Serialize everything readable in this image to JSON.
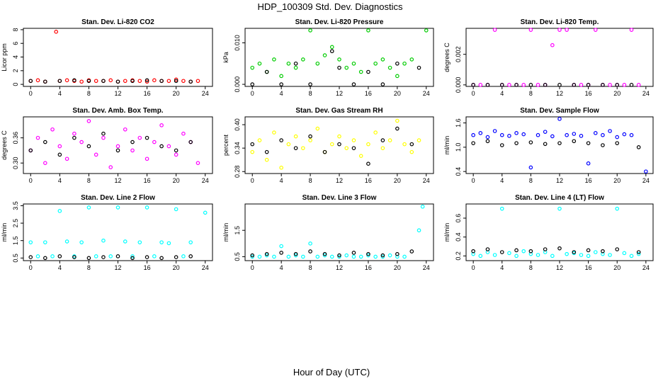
{
  "title": "HDP_100309  Std. Dev. Diagnostics",
  "x_label": "Hour of Day (UTC)",
  "chart_data": [
    {
      "type": "scatter",
      "title": "Stan. Dev. Li-820 CO2",
      "y_label": "Licor ppm",
      "xlim": [
        -1,
        25
      ],
      "xticks": [
        0,
        4,
        8,
        12,
        16,
        20,
        24
      ],
      "ylim": [
        -0.3,
        8.2
      ],
      "yticks": [
        0,
        2,
        4,
        6,
        8
      ],
      "series": [
        {
          "color": "#ff0000",
          "x": [
            0,
            1,
            2,
            3.5,
            4,
            5,
            6,
            7,
            8,
            9,
            10,
            11,
            12,
            13,
            14,
            15,
            16,
            17,
            18,
            19,
            20,
            21,
            22,
            23
          ],
          "values": [
            0.5,
            0.6,
            0.4,
            7.7,
            0.5,
            0.6,
            0.5,
            0.4,
            0.6,
            0.5,
            0.5,
            0.6,
            0.4,
            0.5,
            0.6,
            0.5,
            0.4,
            0.6,
            0.5,
            0.5,
            0.7,
            0.5,
            0.4,
            0.5
          ]
        },
        {
          "color": "#000000",
          "x": [
            0,
            2,
            4,
            6,
            8,
            10,
            12,
            14,
            16,
            18,
            20,
            22
          ],
          "values": [
            0.5,
            0.4,
            0.5,
            0.6,
            0.5,
            0.5,
            0.4,
            0.5,
            0.6,
            0.5,
            0.5,
            0.4
          ]
        }
      ]
    },
    {
      "type": "scatter",
      "title": "Stan. Dev. Li-820 Pressure",
      "y_label": "kPa",
      "xlim": [
        -1,
        25
      ],
      "xticks": [
        0,
        4,
        8,
        12,
        16,
        20,
        24
      ],
      "ylim": [
        -0.0005,
        0.0135
      ],
      "yticks": [
        {
          "value": 0,
          "label": "0.000"
        },
        {
          "value": 0.01,
          "label": "0.010"
        }
      ],
      "series": [
        {
          "color": "#00cc00",
          "x": [
            0,
            1,
            2,
            3,
            4,
            5,
            6,
            7,
            8,
            9,
            10,
            11,
            12,
            13,
            14,
            15,
            16,
            17,
            18,
            19,
            20,
            21,
            22,
            24
          ],
          "values": [
            0.004,
            0.005,
            0.003,
            0.006,
            0.002,
            0.005,
            0.004,
            0.006,
            0.013,
            0.005,
            0.007,
            0.009,
            0.006,
            0.004,
            0.005,
            0.003,
            0.013,
            0.005,
            0.006,
            0.004,
            0.002,
            0.005,
            0.006,
            0.013
          ]
        },
        {
          "color": "#000000",
          "x": [
            0,
            2,
            4,
            6,
            8,
            11,
            12,
            14,
            16,
            18,
            20,
            23
          ],
          "values": [
            0,
            0.003,
            0,
            0.005,
            0,
            0.008,
            0.004,
            0,
            0.003,
            0,
            0.005,
            0.004
          ]
        }
      ]
    },
    {
      "type": "scatter",
      "title": "Stan. Dev. Li-820 Temp.",
      "y_label": "degrees C",
      "xlim": [
        -1,
        25
      ],
      "xticks": [
        0,
        4,
        8,
        12,
        16,
        20,
        24
      ],
      "ylim": [
        -0.0001,
        0.0037
      ],
      "yticks": [
        {
          "value": 0,
          "label": "0.000"
        },
        {
          "value": 0.002,
          "label": "0.002"
        }
      ],
      "series": [
        {
          "color": "#ff00ff",
          "x": [
            0,
            1,
            2,
            3,
            4,
            5,
            6,
            7,
            8,
            9,
            10,
            11,
            12,
            13,
            14,
            15,
            16,
            17,
            18,
            19,
            20,
            21,
            22,
            23
          ],
          "values": [
            0,
            0,
            0,
            0.0036,
            0,
            0,
            0,
            0,
            0.0036,
            0,
            0,
            0.0026,
            0.0036,
            0.0036,
            0,
            0,
            0,
            0.0036,
            0,
            0,
            0,
            0,
            0.0036,
            0
          ]
        },
        {
          "color": "#000000",
          "x": [
            0,
            2,
            4,
            6,
            8,
            10,
            12,
            14,
            16,
            18,
            20,
            22
          ],
          "values": [
            0,
            0,
            0,
            0,
            0,
            0,
            0,
            0,
            0,
            0,
            0,
            0
          ]
        }
      ]
    },
    {
      "type": "scatter",
      "title": "Stan. Dev. Amb. Box Temp.",
      "y_label": "degrees C",
      "xlim": [
        -1,
        25
      ],
      "xticks": [
        0,
        4,
        8,
        12,
        16,
        20,
        24
      ],
      "ylim": [
        0.275,
        0.41
      ],
      "yticks": [
        {
          "value": 0.3,
          "label": "0.30"
        },
        {
          "value": 0.36,
          "label": "0.36"
        }
      ],
      "series": [
        {
          "color": "#ff00ff",
          "x": [
            0,
            1,
            2,
            3,
            4,
            5,
            6,
            7,
            8,
            9,
            10,
            11,
            12,
            13,
            14,
            15,
            16,
            17,
            18,
            19,
            20,
            21,
            22,
            23
          ],
          "values": [
            0.33,
            0.36,
            0.3,
            0.38,
            0.34,
            0.31,
            0.37,
            0.35,
            0.4,
            0.32,
            0.36,
            0.29,
            0.34,
            0.38,
            0.33,
            0.36,
            0.31,
            0.35,
            0.39,
            0.34,
            0.32,
            0.37,
            0.35,
            0.3
          ]
        },
        {
          "color": "#000000",
          "x": [
            0,
            2,
            4,
            6,
            8,
            10,
            12,
            14,
            16,
            18,
            20,
            22
          ],
          "values": [
            0.33,
            0.35,
            0.32,
            0.36,
            0.34,
            0.37,
            0.33,
            0.35,
            0.36,
            0.34,
            0.33,
            0.35
          ]
        }
      ]
    },
    {
      "type": "scatter",
      "title": "Stan. Dev. Gas Stream RH",
      "y_label": "percent",
      "xlim": [
        -1,
        25
      ],
      "xticks": [
        0,
        4,
        8,
        12,
        16,
        20,
        24
      ],
      "ylim": [
        0.275,
        0.42
      ],
      "yticks": [
        0.28,
        0.34,
        {
          "value": 0.4,
          "label": "0.40"
        }
      ],
      "series": [
        {
          "color": "#ffff00",
          "x": [
            0,
            1,
            2,
            3,
            4,
            5,
            6,
            7,
            8,
            9,
            10,
            11,
            12,
            13,
            14,
            15,
            16,
            17,
            18,
            19,
            20,
            21,
            22,
            23
          ],
          "values": [
            0.33,
            0.36,
            0.31,
            0.38,
            0.29,
            0.35,
            0.37,
            0.34,
            0.36,
            0.39,
            0.33,
            0.35,
            0.37,
            0.34,
            0.36,
            0.32,
            0.35,
            0.38,
            0.34,
            0.36,
            0.41,
            0.35,
            0.33,
            0.36
          ]
        },
        {
          "color": "#000000",
          "x": [
            0,
            2,
            4,
            6,
            8,
            10,
            12,
            14,
            16,
            18,
            20,
            22
          ],
          "values": [
            0.35,
            0.33,
            0.36,
            0.34,
            0.37,
            0.33,
            0.35,
            0.34,
            0.3,
            0.36,
            0.39,
            0.35
          ]
        }
      ]
    },
    {
      "type": "scatter",
      "title": "Stan. Dev. Sample Flow",
      "y_label": "ml/min",
      "xlim": [
        -1,
        25
      ],
      "xticks": [
        0,
        4,
        8,
        12,
        16,
        20,
        24
      ],
      "ylim": [
        0.35,
        1.75
      ],
      "yticks": [
        0.4,
        {
          "value": 1,
          "label": "1.0"
        },
        1.6
      ],
      "series": [
        {
          "color": "#0000ff",
          "x": [
            0,
            1,
            2,
            3,
            4,
            5,
            6,
            7,
            8,
            9,
            10,
            11,
            12,
            13,
            14,
            15,
            16,
            17,
            18,
            19,
            20,
            21,
            22,
            24
          ],
          "values": [
            1.3,
            1.35,
            1.25,
            1.4,
            1.3,
            1.28,
            1.35,
            1.32,
            0.5,
            1.3,
            1.38,
            1.27,
            1.7,
            1.3,
            1.33,
            1.28,
            0.6,
            1.35,
            1.3,
            1.4,
            1.25,
            1.32,
            1.3,
            0.4
          ]
        },
        {
          "color": "#000000",
          "x": [
            0,
            2,
            4,
            6,
            8,
            10,
            12,
            14,
            16,
            18,
            20,
            23
          ],
          "values": [
            1.1,
            1.15,
            1.05,
            1.1,
            1.12,
            1.08,
            1.1,
            1.15,
            1.1,
            1.05,
            1.1,
            1.0
          ]
        }
      ]
    },
    {
      "type": "scatter",
      "title": "Stan. Dev. Line 2 Flow",
      "y_label": "ml/min",
      "xlim": [
        -1,
        25
      ],
      "xticks": [
        0,
        4,
        8,
        12,
        16,
        20,
        24
      ],
      "ylim": [
        0.35,
        3.6
      ],
      "yticks": [
        0.5,
        1.5,
        2.5,
        3.5
      ],
      "series": [
        {
          "color": "#00ffff",
          "x": [
            0,
            1,
            2,
            3,
            4,
            5,
            6,
            7,
            8,
            9,
            10,
            11,
            12,
            13,
            14,
            15,
            16,
            17,
            18,
            19,
            20,
            21,
            22,
            24
          ],
          "values": [
            1.4,
            0.6,
            1.4,
            0.6,
            3.2,
            1.45,
            0.6,
            1.4,
            3.4,
            0.6,
            1.5,
            0.6,
            3.4,
            1.45,
            0.6,
            1.4,
            3.4,
            0.6,
            1.4,
            1.35,
            3.3,
            0.6,
            1.4,
            3.1
          ]
        },
        {
          "color": "#000000",
          "x": [
            0,
            2,
            4,
            6,
            8,
            10,
            12,
            14,
            16,
            18,
            20,
            22
          ],
          "values": [
            0.55,
            0.5,
            0.6,
            0.55,
            0.5,
            0.55,
            0.6,
            0.5,
            0.55,
            0.5,
            0.55,
            0.6
          ]
        }
      ]
    },
    {
      "type": "scatter",
      "title": "Stan. Dev. Line 3 Flow",
      "y_label": "ml/min",
      "xlim": [
        -1,
        25
      ],
      "xticks": [
        0,
        4,
        8,
        12,
        16,
        20,
        24
      ],
      "ylim": [
        0.35,
        2.5
      ],
      "yticks": [
        0.5,
        1.5
      ],
      "series": [
        {
          "color": "#00ffff",
          "x": [
            0,
            1,
            2,
            3,
            4,
            5,
            6,
            7,
            8,
            9,
            10,
            11,
            12,
            13,
            14,
            15,
            16,
            17,
            18,
            19,
            20,
            21,
            23,
            23.5
          ],
          "values": [
            0.5,
            0.5,
            0.55,
            0.5,
            0.9,
            0.5,
            0.55,
            0.5,
            1.0,
            0.5,
            0.55,
            0.5,
            0.5,
            0.55,
            0.5,
            0.5,
            0.55,
            0.5,
            0.5,
            0.55,
            0.5,
            0.5,
            1.5,
            2.4
          ]
        },
        {
          "color": "#000000",
          "x": [
            0,
            2,
            4,
            6,
            8,
            10,
            12,
            14,
            16,
            18,
            20,
            22
          ],
          "values": [
            0.55,
            0.6,
            0.65,
            0.6,
            0.7,
            0.6,
            0.55,
            0.65,
            0.6,
            0.55,
            0.6,
            0.7
          ]
        }
      ]
    },
    {
      "type": "scatter",
      "title": "Stan. Dev. Line 4 (LT) Flow",
      "y_label": "ml/min",
      "xlim": [
        -1,
        25
      ],
      "xticks": [
        0,
        4,
        8,
        12,
        16,
        20,
        24
      ],
      "ylim": [
        0.15,
        0.75
      ],
      "yticks": [
        0.2,
        0.4,
        0.6
      ],
      "series": [
        {
          "color": "#00ffff",
          "x": [
            0,
            1,
            2,
            3,
            4,
            5,
            6,
            7,
            8,
            9,
            10,
            11,
            12,
            13,
            14,
            15,
            16,
            17,
            18,
            19,
            20,
            21,
            22,
            23
          ],
          "values": [
            0.22,
            0.2,
            0.24,
            0.21,
            0.7,
            0.23,
            0.2,
            0.25,
            0.22,
            0.21,
            0.24,
            0.2,
            0.7,
            0.22,
            0.23,
            0.21,
            0.2,
            0.24,
            0.22,
            0.21,
            0.7,
            0.23,
            0.2,
            0.22
          ]
        },
        {
          "color": "#000000",
          "x": [
            0,
            2,
            4,
            6,
            8,
            10,
            12,
            14,
            16,
            18,
            20,
            23
          ],
          "values": [
            0.25,
            0.27,
            0.24,
            0.26,
            0.25,
            0.27,
            0.28,
            0.24,
            0.26,
            0.25,
            0.27,
            0.24
          ]
        }
      ]
    }
  ]
}
